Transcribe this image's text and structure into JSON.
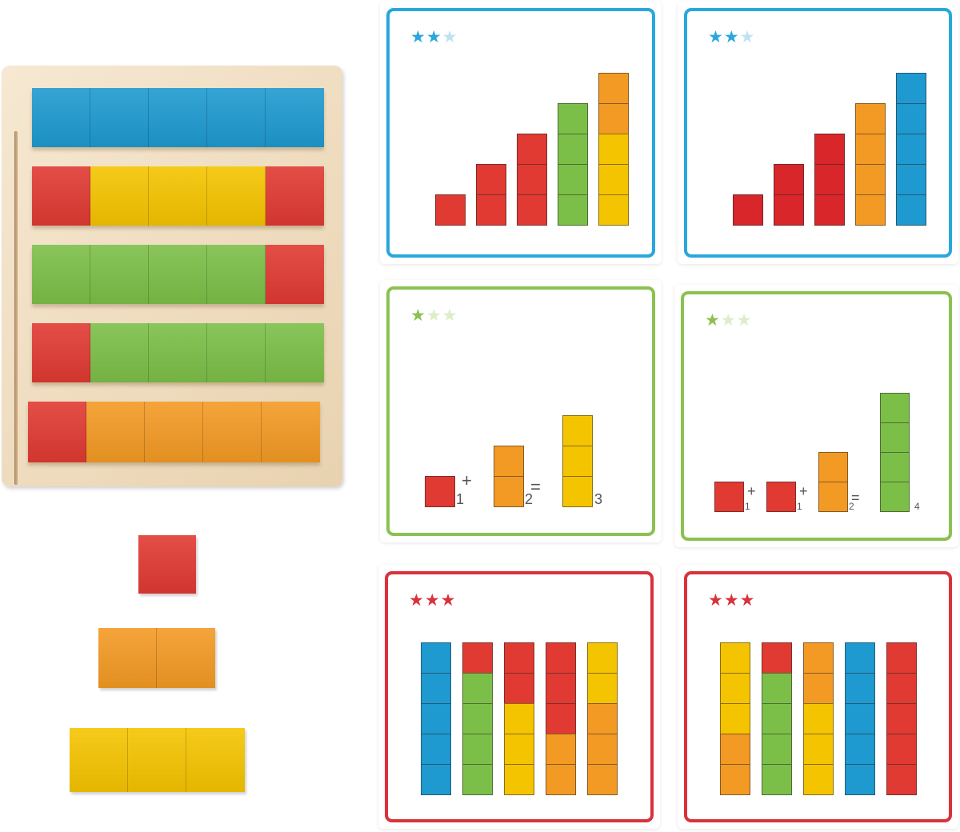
{
  "colors": {
    "blue": "#1e9ad0",
    "red": "#e03a32",
    "red_dark": "#d8262a",
    "yellow": "#f5c400",
    "green": "#7cbf48",
    "orange": "#f39a24",
    "card_blue": "#29a7dc",
    "card_green": "#8cc152",
    "card_red": "#d9323b",
    "star_faded_blue": "#bfe2f2",
    "star_faded_green": "#dcedc8"
  },
  "tray_rows": [
    [
      "blue",
      "blue",
      "blue",
      "blue",
      "blue"
    ],
    [
      "red",
      "yellow",
      "yellow",
      "yellow",
      "red"
    ],
    [
      "green",
      "green",
      "green",
      "green",
      "red"
    ],
    [
      "red",
      "green",
      "green",
      "green",
      "green"
    ],
    [
      "red",
      "orange",
      "orange",
      "orange",
      "orange"
    ]
  ],
  "loose_blocks": [
    {
      "cubes": [
        "red"
      ]
    },
    {
      "cubes": [
        "orange",
        "orange"
      ]
    },
    {
      "cubes": [
        "yellow",
        "yellow",
        "yellow"
      ]
    }
  ],
  "cards": [
    {
      "frame": "blue",
      "stars": 2,
      "type": "staircase",
      "bars": [
        [
          "red"
        ],
        [
          "red",
          "red"
        ],
        [
          "red",
          "red",
          "red"
        ],
        [
          "green",
          "green",
          "green",
          "green"
        ],
        [
          "yellow",
          "yellow",
          "yellow",
          "orange",
          "orange"
        ]
      ]
    },
    {
      "frame": "blue",
      "stars": 2,
      "type": "staircase",
      "bars": [
        [
          "red_dark"
        ],
        [
          "red_dark",
          "red_dark"
        ],
        [
          "red_dark",
          "red_dark",
          "red_dark"
        ],
        [
          "orange",
          "orange",
          "orange",
          "orange"
        ],
        [
          "blue",
          "blue",
          "blue",
          "blue",
          "blue"
        ]
      ]
    },
    {
      "frame": "green",
      "stars": 1,
      "type": "equation",
      "terms": [
        {
          "cubes": [
            "red"
          ],
          "num": "1"
        },
        {
          "cubes": [
            "orange",
            "orange"
          ],
          "num": "2"
        }
      ],
      "result": {
        "cubes": [
          "yellow",
          "yellow",
          "yellow"
        ],
        "num": "3"
      },
      "plus": "+",
      "equals": "="
    },
    {
      "frame": "green",
      "stars": 1,
      "type": "equation",
      "terms": [
        {
          "cubes": [
            "red"
          ],
          "num": "1"
        },
        {
          "cubes": [
            "red"
          ],
          "num": "1"
        },
        {
          "cubes": [
            "orange",
            "orange"
          ],
          "num": "2"
        }
      ],
      "result": {
        "cubes": [
          "green",
          "green",
          "green",
          "green"
        ],
        "num": "4"
      },
      "plus": "+",
      "equals": "="
    },
    {
      "frame": "red",
      "stars": 3,
      "type": "columns",
      "bars": [
        [
          "blue",
          "blue",
          "blue",
          "blue",
          "blue"
        ],
        [
          "green",
          "green",
          "green",
          "green",
          "red"
        ],
        [
          "yellow",
          "yellow",
          "yellow",
          "red",
          "red"
        ],
        [
          "orange",
          "orange",
          "red",
          "red",
          "red"
        ],
        [
          "orange",
          "orange",
          "orange",
          "yellow",
          "yellow"
        ]
      ]
    },
    {
      "frame": "red",
      "stars": 3,
      "type": "columns",
      "bars": [
        [
          "orange",
          "orange",
          "yellow",
          "yellow",
          "yellow"
        ],
        [
          "green",
          "green",
          "green",
          "green",
          "red"
        ],
        [
          "yellow",
          "yellow",
          "yellow",
          "orange",
          "orange"
        ],
        [
          "blue",
          "blue",
          "blue",
          "blue",
          "blue"
        ],
        [
          "red",
          "red",
          "red",
          "red",
          "red"
        ]
      ]
    }
  ],
  "star_glyph": "★"
}
